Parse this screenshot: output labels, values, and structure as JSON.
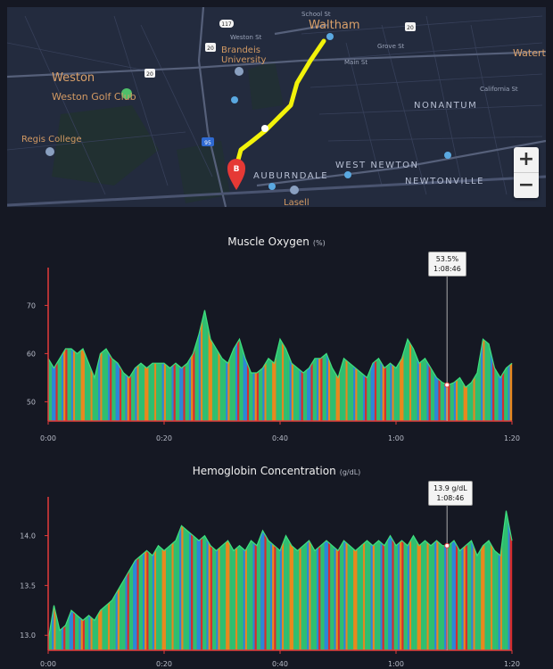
{
  "map": {
    "places": {
      "waltham": "Waltham",
      "weston": "Weston",
      "weston_golf": "Weston Golf Club",
      "regis": "Regis College",
      "brandeis": "Brandeis\nUniversity",
      "nonantum": "NONANTUM",
      "west_newton": "WEST NEWTON",
      "auburndale": "AUBURNDALE",
      "newtonville": "NEWTONVILLE",
      "lasell": "Lasell",
      "watertown": "Waterto"
    },
    "streets": {
      "weston_st": "Weston St",
      "school_st": "School St",
      "grove_st": "Grove St",
      "main_st": "Main St",
      "calif_st": "California St"
    },
    "route_shields": [
      "117",
      "20",
      "20",
      "20",
      "95"
    ],
    "marker_label": "B",
    "zoom": {
      "in": "+",
      "out": "−"
    },
    "colors": {
      "route": "#f2f20a",
      "marker": "#e53935"
    }
  },
  "charts": [
    {
      "title": "Muscle Oxygen",
      "unit": "(%)",
      "tooltip": {
        "value": "53.5%",
        "time": "1:08:46"
      },
      "y_ticks": [
        "70",
        "60",
        "50"
      ],
      "x_ticks": [
        "0:00",
        "0:20",
        "0:40",
        "1:00",
        "1:20"
      ]
    },
    {
      "title": "Hemoglobin Concentration",
      "unit": "(g/dL)",
      "tooltip": {
        "value": "13.9 g/dL",
        "time": "1:08:46"
      },
      "y_ticks": [
        "14.0",
        "13.5",
        "13.0"
      ],
      "x_ticks": [
        "0:00",
        "0:20",
        "0:40",
        "1:00",
        "1:20"
      ]
    }
  ],
  "chart_data": [
    {
      "type": "area",
      "title": "Muscle Oxygen",
      "ylabel": "(%)",
      "xlabel": "",
      "x_unit": "minutes",
      "ylim": [
        46,
        76
      ],
      "xlim": [
        0,
        80
      ],
      "points": [
        [
          0,
          59
        ],
        [
          1,
          57
        ],
        [
          2,
          59
        ],
        [
          3,
          61
        ],
        [
          4,
          61
        ],
        [
          5,
          60
        ],
        [
          6,
          61
        ],
        [
          7,
          58
        ],
        [
          8,
          55
        ],
        [
          9,
          60
        ],
        [
          10,
          61
        ],
        [
          11,
          59
        ],
        [
          12,
          58
        ],
        [
          13,
          56
        ],
        [
          14,
          55
        ],
        [
          15,
          57
        ],
        [
          16,
          58
        ],
        [
          17,
          57
        ],
        [
          18,
          58
        ],
        [
          19,
          58
        ],
        [
          20,
          58
        ],
        [
          21,
          57
        ],
        [
          22,
          58
        ],
        [
          23,
          57
        ],
        [
          24,
          58
        ],
        [
          25,
          60
        ],
        [
          26,
          64
        ],
        [
          27,
          69
        ],
        [
          28,
          63
        ],
        [
          29,
          61
        ],
        [
          30,
          59
        ],
        [
          31,
          58
        ],
        [
          32,
          61
        ],
        [
          33,
          63
        ],
        [
          34,
          59
        ],
        [
          35,
          56
        ],
        [
          36,
          56
        ],
        [
          37,
          57
        ],
        [
          38,
          59
        ],
        [
          39,
          58
        ],
        [
          40,
          63
        ],
        [
          41,
          61
        ],
        [
          42,
          58
        ],
        [
          43,
          57
        ],
        [
          44,
          56
        ],
        [
          45,
          57
        ],
        [
          46,
          59
        ],
        [
          47,
          59
        ],
        [
          48,
          60
        ],
        [
          49,
          57
        ],
        [
          50,
          55
        ],
        [
          51,
          59
        ],
        [
          52,
          58
        ],
        [
          53,
          57
        ],
        [
          54,
          56
        ],
        [
          55,
          55
        ],
        [
          56,
          58
        ],
        [
          57,
          59
        ],
        [
          58,
          57
        ],
        [
          59,
          58
        ],
        [
          60,
          57
        ],
        [
          61,
          59
        ],
        [
          62,
          63
        ],
        [
          63,
          61
        ],
        [
          64,
          58
        ],
        [
          65,
          59
        ],
        [
          66,
          57
        ],
        [
          67,
          55
        ],
        [
          68,
          54
        ],
        [
          69,
          53.5
        ],
        [
          70,
          54
        ],
        [
          71,
          55
        ],
        [
          72,
          53
        ],
        [
          73,
          54
        ],
        [
          74,
          56
        ],
        [
          75,
          63
        ],
        [
          76,
          62
        ],
        [
          77,
          57
        ],
        [
          78,
          55
        ],
        [
          79,
          57
        ],
        [
          80,
          58
        ]
      ],
      "tooltip_point": [
        68.8,
        53.5
      ],
      "zone_colors": [
        "#2fbf71",
        "#2d86d8",
        "#e8881e",
        "#d72d2d"
      ]
    },
    {
      "type": "area",
      "title": "Hemoglobin Concentration",
      "ylabel": "(g/dL)",
      "xlabel": "",
      "x_unit": "minutes",
      "ylim": [
        12.85,
        14.3
      ],
      "xlim": [
        0,
        80
      ],
      "points": [
        [
          0,
          12.95
        ],
        [
          1,
          13.3
        ],
        [
          2,
          13.05
        ],
        [
          3,
          13.1
        ],
        [
          4,
          13.25
        ],
        [
          5,
          13.2
        ],
        [
          6,
          13.15
        ],
        [
          7,
          13.2
        ],
        [
          8,
          13.15
        ],
        [
          9,
          13.25
        ],
        [
          10,
          13.3
        ],
        [
          11,
          13.35
        ],
        [
          12,
          13.45
        ],
        [
          13,
          13.55
        ],
        [
          14,
          13.65
        ],
        [
          15,
          13.75
        ],
        [
          16,
          13.8
        ],
        [
          17,
          13.85
        ],
        [
          18,
          13.8
        ],
        [
          19,
          13.9
        ],
        [
          20,
          13.85
        ],
        [
          21,
          13.9
        ],
        [
          22,
          13.95
        ],
        [
          23,
          14.1
        ],
        [
          24,
          14.05
        ],
        [
          25,
          14.0
        ],
        [
          26,
          13.95
        ],
        [
          27,
          14.0
        ],
        [
          28,
          13.9
        ],
        [
          29,
          13.85
        ],
        [
          30,
          13.9
        ],
        [
          31,
          13.95
        ],
        [
          32,
          13.85
        ],
        [
          33,
          13.9
        ],
        [
          34,
          13.85
        ],
        [
          35,
          13.95
        ],
        [
          36,
          13.9
        ],
        [
          37,
          14.05
        ],
        [
          38,
          13.95
        ],
        [
          39,
          13.9
        ],
        [
          40,
          13.85
        ],
        [
          41,
          14.0
        ],
        [
          42,
          13.9
        ],
        [
          43,
          13.85
        ],
        [
          44,
          13.9
        ],
        [
          45,
          13.95
        ],
        [
          46,
          13.85
        ],
        [
          47,
          13.9
        ],
        [
          48,
          13.95
        ],
        [
          49,
          13.9
        ],
        [
          50,
          13.85
        ],
        [
          51,
          13.95
        ],
        [
          52,
          13.9
        ],
        [
          53,
          13.85
        ],
        [
          54,
          13.9
        ],
        [
          55,
          13.95
        ],
        [
          56,
          13.9
        ],
        [
          57,
          13.95
        ],
        [
          58,
          13.9
        ],
        [
          59,
          14.0
        ],
        [
          60,
          13.9
        ],
        [
          61,
          13.95
        ],
        [
          62,
          13.9
        ],
        [
          63,
          14.0
        ],
        [
          64,
          13.9
        ],
        [
          65,
          13.95
        ],
        [
          66,
          13.9
        ],
        [
          67,
          13.95
        ],
        [
          68,
          13.9
        ],
        [
          69,
          13.9
        ],
        [
          70,
          13.95
        ],
        [
          71,
          13.85
        ],
        [
          72,
          13.9
        ],
        [
          73,
          13.95
        ],
        [
          74,
          13.8
        ],
        [
          75,
          13.9
        ],
        [
          76,
          13.95
        ],
        [
          77,
          13.85
        ],
        [
          78,
          13.8
        ],
        [
          79,
          14.25
        ],
        [
          80,
          13.95
        ]
      ],
      "tooltip_point": [
        68.8,
        13.9
      ],
      "zone_colors": [
        "#2fbf71",
        "#2d86d8",
        "#e8881e",
        "#d72d2d"
      ]
    }
  ]
}
